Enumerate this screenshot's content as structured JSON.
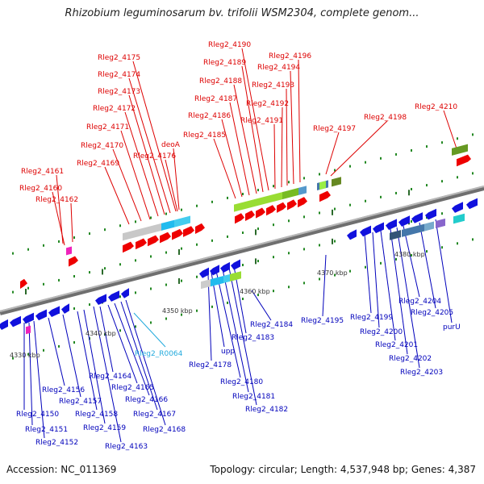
{
  "header": {
    "title": "Rhizobium leguminosarum bv. trifolii WSM2304, complete genom..."
  },
  "footer": {
    "accession": "Accession: NC_011369",
    "topology": "Topology: circular; Length: 4,537,948 bp; Genes: 4,387"
  },
  "colors": {
    "forward_label": "#dd0000",
    "reverse_label": "#0000bb",
    "rna_label": "#22aadd",
    "backbone": "#888888",
    "forward_gene": "#ee0000",
    "reverse_gene": "#1111dd",
    "tick": "#228822"
  },
  "scale": {
    "kbp_labels": [
      "4330 kbp",
      "4340 kbp",
      "4350 kbp",
      "4360 kbp",
      "4370 kbp",
      "4380 kbp"
    ]
  },
  "genes": {
    "forward": [
      "Rleg2_4161",
      "Rleg2_4160",
      "Rleg2_4162",
      "Rleg2_4175",
      "Rleg2_4174",
      "Rleg2_4173",
      "Rleg2_4172",
      "Rleg2_4171",
      "Rleg2_4170",
      "Rleg2_4169",
      "Rleg2_4176",
      "deoA",
      "Rleg2_4190",
      "Rleg2_4189",
      "Rleg2_4188",
      "Rleg2_4187",
      "Rleg2_4186",
      "Rleg2_4185",
      "Rleg2_4196",
      "Rleg2_4194",
      "Rleg2_4193",
      "Rleg2_4192",
      "Rleg2_4191",
      "Rleg2_4197",
      "Rleg2_4198",
      "Rleg2_4210"
    ],
    "reverse": [
      "Rleg2_4150",
      "Rleg2_4151",
      "Rleg2_4152",
      "Rleg2_4156",
      "Rleg2_4157",
      "Rleg2_4158",
      "Rleg2_4159",
      "Rleg2_4163",
      "Rleg2_4164",
      "Rleg2_4165",
      "Rleg2_4166",
      "Rleg2_4167",
      "Rleg2_4168",
      "Rleg2_4178",
      "upp",
      "Rleg2_4180",
      "Rleg2_4181",
      "Rleg2_4182",
      "Rleg2_4183",
      "Rleg2_4184",
      "Rleg2_4195",
      "Rleg2_4199",
      "Rleg2_4200",
      "Rleg2_4201",
      "Rleg2_4202",
      "Rleg2_4203",
      "Rleg2_4204",
      "Rleg2_4205",
      "purU"
    ],
    "rna": [
      "Rleg2_R0064"
    ]
  }
}
